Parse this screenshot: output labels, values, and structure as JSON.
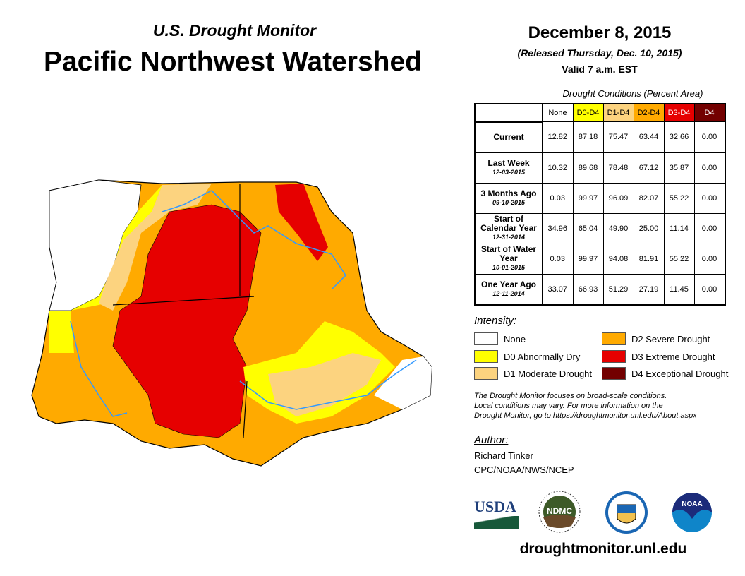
{
  "header": {
    "subtitle": "U.S. Drought Monitor",
    "title": "Pacific Northwest Watershed",
    "date": "December 8, 2015",
    "released": "(Released Thursday, Dec. 10, 2015)",
    "valid": "Valid 7 a.m. EST"
  },
  "table": {
    "caption": "Drought Conditions (Percent Area)",
    "columns": [
      {
        "label": "None",
        "color": "#ffffff",
        "text": "#000"
      },
      {
        "label": "D0-D4",
        "color": "#ffff00",
        "text": "#000"
      },
      {
        "label": "D1-D4",
        "color": "#fcd37f",
        "text": "#000"
      },
      {
        "label": "D2-D4",
        "color": "#ffaa00",
        "text": "#000"
      },
      {
        "label": "D3-D4",
        "color": "#e60000",
        "text": "#fff"
      },
      {
        "label": "D4",
        "color": "#730000",
        "text": "#fff"
      }
    ],
    "rows": [
      {
        "label": "Current",
        "date": "",
        "values": [
          "12.82",
          "87.18",
          "75.47",
          "63.44",
          "32.66",
          "0.00"
        ]
      },
      {
        "label": "Last Week",
        "date": "12-03-2015",
        "values": [
          "10.32",
          "89.68",
          "78.48",
          "67.12",
          "35.87",
          "0.00"
        ]
      },
      {
        "label": "3 Months Ago",
        "date": "09-10-2015",
        "values": [
          "0.03",
          "99.97",
          "96.09",
          "82.07",
          "55.22",
          "0.00"
        ]
      },
      {
        "label": "Start of Calendar Year",
        "date": "12-31-2014",
        "values": [
          "34.96",
          "65.04",
          "49.90",
          "25.00",
          "11.14",
          "0.00"
        ]
      },
      {
        "label": "Start of Water Year",
        "date": "10-01-2015",
        "values": [
          "0.03",
          "99.97",
          "94.08",
          "81.91",
          "55.22",
          "0.00"
        ]
      },
      {
        "label": "One Year Ago",
        "date": "12-11-2014",
        "values": [
          "33.07",
          "66.93",
          "51.29",
          "27.19",
          "11.45",
          "0.00"
        ]
      }
    ]
  },
  "legend": {
    "title": "Intensity:",
    "items": [
      {
        "label": "None",
        "color": "#ffffff"
      },
      {
        "label": "D0 Abnormally Dry",
        "color": "#ffff00"
      },
      {
        "label": "D1 Moderate Drought",
        "color": "#fcd37f"
      },
      {
        "label": "D2 Severe Drought",
        "color": "#ffaa00"
      },
      {
        "label": "D3 Extreme Drought",
        "color": "#e60000"
      },
      {
        "label": "D4 Exceptional Drought",
        "color": "#730000"
      }
    ]
  },
  "note": [
    "The Drought Monitor focuses on broad-scale conditions.",
    "Local conditions may vary. For more information on the",
    "Drought Monitor, go to https://droughtmonitor.unl.edu/About.aspx"
  ],
  "author": {
    "label": "Author:",
    "name": "Richard Tinker",
    "org": "CPC/NOAA/NWS/NCEP"
  },
  "logos": {
    "usda": "USDA",
    "ndmc": "NDMC",
    "noaa": "NOAA"
  },
  "url": "droughtmonitor.unl.edu"
}
